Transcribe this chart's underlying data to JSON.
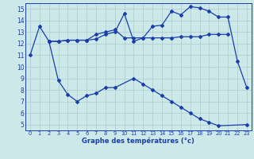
{
  "line1_x": [
    0,
    1,
    2,
    3,
    4,
    5,
    6,
    7,
    8,
    9,
    10,
    11,
    12,
    13,
    14,
    15,
    16,
    17,
    18,
    19,
    20,
    21,
    22,
    23
  ],
  "line1_y": [
    11.0,
    13.5,
    12.2,
    12.2,
    12.3,
    12.3,
    12.3,
    12.4,
    12.8,
    13.0,
    14.6,
    12.2,
    12.5,
    13.5,
    13.6,
    14.8,
    14.5,
    15.2,
    15.1,
    14.8,
    14.3,
    14.3,
    10.5,
    8.2
  ],
  "line2_x": [
    2,
    3,
    4,
    5,
    6,
    7,
    8,
    9,
    10,
    11,
    12,
    13,
    14,
    15,
    16,
    17,
    18,
    19,
    20,
    21
  ],
  "line2_y": [
    12.2,
    12.2,
    12.3,
    12.3,
    12.3,
    12.8,
    13.0,
    13.2,
    12.5,
    12.5,
    12.5,
    12.5,
    12.5,
    12.5,
    12.6,
    12.6,
    12.6,
    12.8,
    12.8,
    12.8
  ],
  "line3_x": [
    2,
    3,
    4,
    5,
    6,
    7,
    8,
    9,
    11,
    12,
    13,
    14,
    15,
    16,
    17,
    18,
    19,
    20,
    23
  ],
  "line3_y": [
    12.2,
    8.8,
    7.6,
    7.0,
    7.5,
    7.7,
    8.2,
    8.2,
    9.0,
    8.5,
    8.0,
    7.5,
    7.0,
    6.5,
    6.0,
    5.5,
    5.2,
    4.9,
    5.0
  ],
  "line_color": "#1a3eaa",
  "bg_color": "#cce8e8",
  "grid_color": "#aacccc",
  "xlabel": "Graphe des températures (°c)",
  "xlim": [
    -0.5,
    23.5
  ],
  "ylim": [
    4.5,
    15.5
  ],
  "yticks": [
    5,
    6,
    7,
    8,
    9,
    10,
    11,
    12,
    13,
    14,
    15
  ],
  "xticks": [
    0,
    1,
    2,
    3,
    4,
    5,
    6,
    7,
    8,
    9,
    10,
    11,
    12,
    13,
    14,
    15,
    16,
    17,
    18,
    19,
    20,
    21,
    22,
    23
  ]
}
